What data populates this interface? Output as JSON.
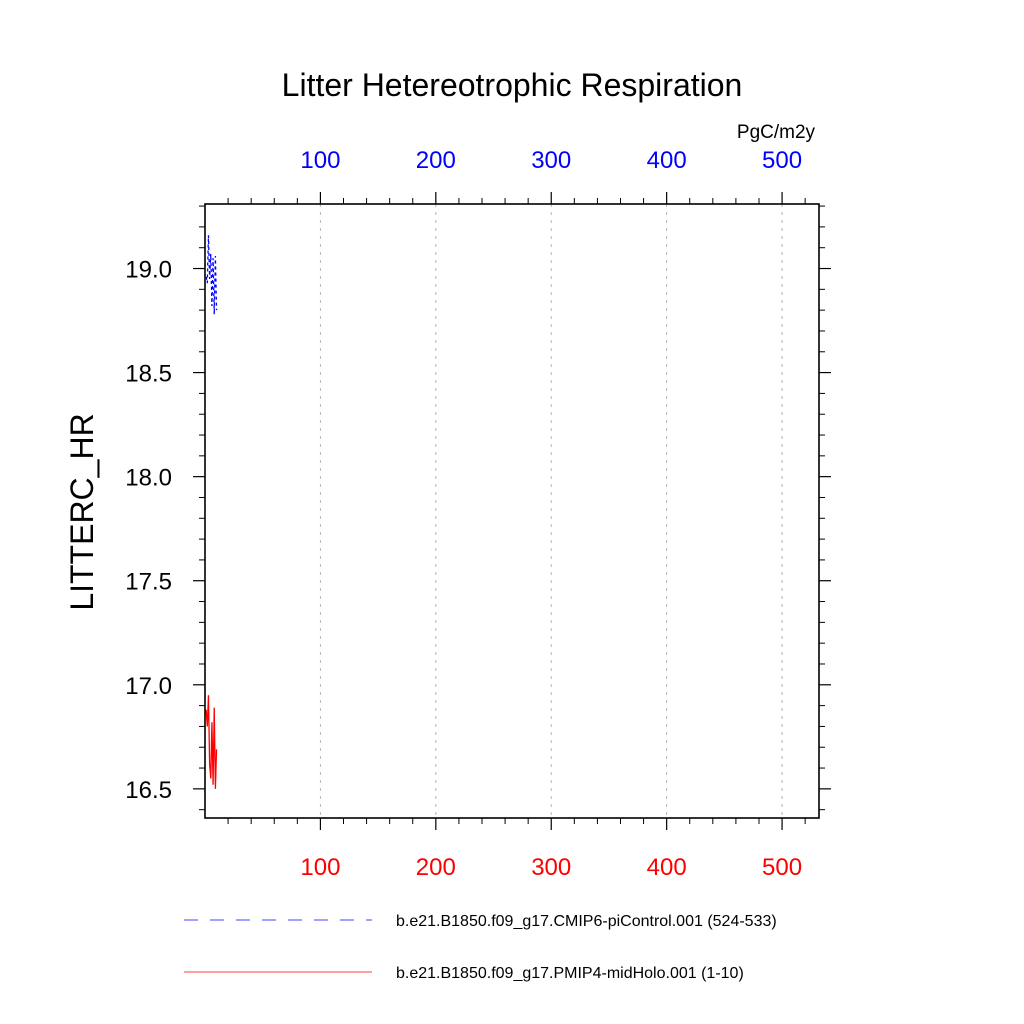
{
  "chart_data": {
    "type": "line",
    "title": "Litter Hetereotrophic Respiration",
    "ylabel": "LITTERC_HR",
    "units_label": "PgC/m2y",
    "ylim": [
      16.36,
      19.31
    ],
    "yticks": [
      16.5,
      17.0,
      17.5,
      18.0,
      18.5,
      19.0
    ],
    "ytick_labels": [
      "16.5",
      "17.0",
      "17.5",
      "18.0",
      "18.5",
      "19.0"
    ],
    "yminor_step": 0.1,
    "xlim": [
      0,
      532
    ],
    "xticks": [
      100,
      200,
      300,
      400,
      500
    ],
    "xtick_labels": [
      "100",
      "200",
      "300",
      "400",
      "500"
    ],
    "xminor_step": 20,
    "grid": "vertical-dashed",
    "top_axis_color": "#0000ff",
    "bottom_axis_color": "#ff0000",
    "series": [
      {
        "name": "b.e21.B1850.f09_g17.CMIP6-piControl.001 (524-533)",
        "axis": "top",
        "color": "#0000ff",
        "style": "dashed",
        "x": [
          1,
          2,
          3,
          4,
          5,
          6,
          7,
          8,
          9,
          10
        ],
        "values": [
          18.96,
          18.93,
          19.16,
          18.95,
          19.07,
          18.82,
          19.05,
          18.78,
          19.06,
          18.8
        ]
      },
      {
        "name": "b.e21.B1850.f09_g17.PMIP4-midHolo.001 (1-10)",
        "axis": "bottom",
        "color": "#ff0000",
        "style": "solid",
        "x": [
          1,
          2,
          3,
          4,
          5,
          6,
          7,
          8,
          9,
          10
        ],
        "values": [
          16.88,
          16.8,
          16.95,
          16.62,
          16.55,
          16.82,
          16.52,
          16.89,
          16.5,
          16.69
        ]
      }
    ]
  }
}
